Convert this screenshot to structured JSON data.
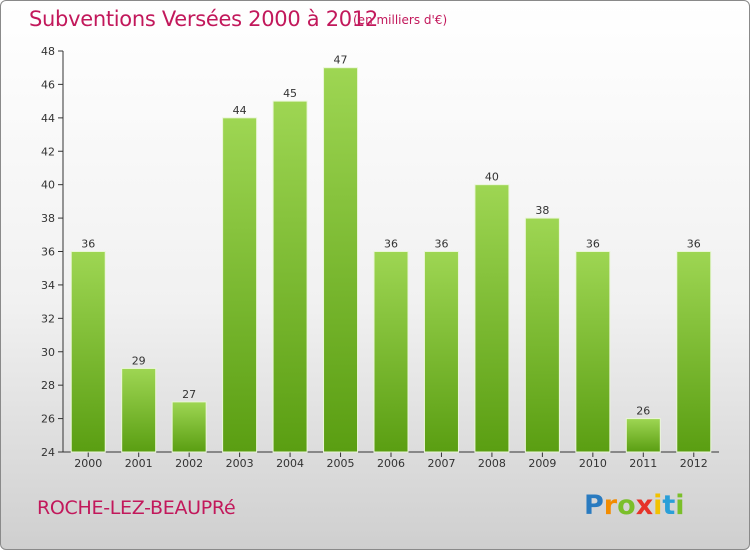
{
  "header": {
    "title": "Subventions Versées 2000 à 2012",
    "unit_note": "(en milliers d'€)"
  },
  "footer": {
    "commune": "ROCHE-LEZ-BEAUPRé",
    "brand": {
      "letters": [
        "P",
        "r",
        "o",
        "x",
        "i",
        "t",
        "i"
      ],
      "colors": [
        "#2a7bc0",
        "#f28c00",
        "#7bbf2a",
        "#e63329",
        "#f2c200",
        "#2a9fd8",
        "#7bbf2a"
      ]
    }
  },
  "chart_data": {
    "type": "bar",
    "title": "Subventions Versées 2000 à 2012",
    "categories": [
      "2000",
      "2001",
      "2002",
      "2003",
      "2004",
      "2005",
      "2006",
      "2007",
      "2008",
      "2009",
      "2010",
      "2011",
      "2012"
    ],
    "values": [
      36,
      29,
      27,
      44,
      45,
      47,
      36,
      36,
      40,
      38,
      36,
      26,
      36
    ],
    "ylim": [
      24,
      48
    ],
    "yticks": [
      24,
      26,
      28,
      30,
      32,
      34,
      36,
      38,
      40,
      42,
      44,
      46,
      48
    ],
    "grid": false,
    "bar_color_top": "#9ed653",
    "bar_color_bottom": "#5a9e12",
    "axis_color": "#333333"
  }
}
